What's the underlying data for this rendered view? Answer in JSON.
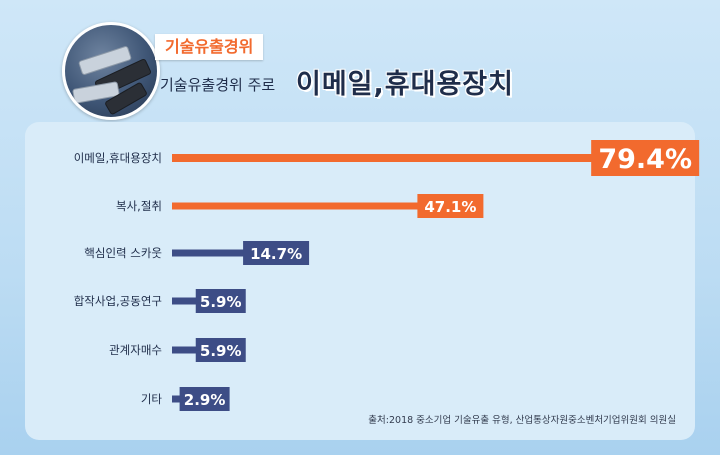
{
  "header": {
    "tag": "기술유출경위",
    "subtitle": "기술유출경위 주로",
    "headline": "이메일,휴대용장치"
  },
  "source": "출처:2018 중소기업 기술유출 유형, 산업통상자원중소벤처기업위원회 의원실",
  "colors": {
    "highlight": "#f26a2e",
    "normal": "#3d4d86",
    "text": "#1f2d4a"
  },
  "chart_data": {
    "type": "bar",
    "orientation": "horizontal",
    "categories": [
      "이메일,휴대용장치",
      "복사,절취",
      "핵심인력 스카웃",
      "합작사업,공동연구",
      "관계자매수",
      "기타"
    ],
    "values": [
      79.4,
      47.1,
      14.7,
      5.9,
      5.9,
      2.9
    ],
    "value_labels": [
      "79.4%",
      "47.1%",
      "14.7%",
      "5.9%",
      "5.9%",
      "2.9%"
    ],
    "highlighted": [
      true,
      true,
      false,
      false,
      false,
      false
    ],
    "xlim": [
      0,
      100
    ],
    "title": "",
    "xlabel": "",
    "ylabel": ""
  }
}
